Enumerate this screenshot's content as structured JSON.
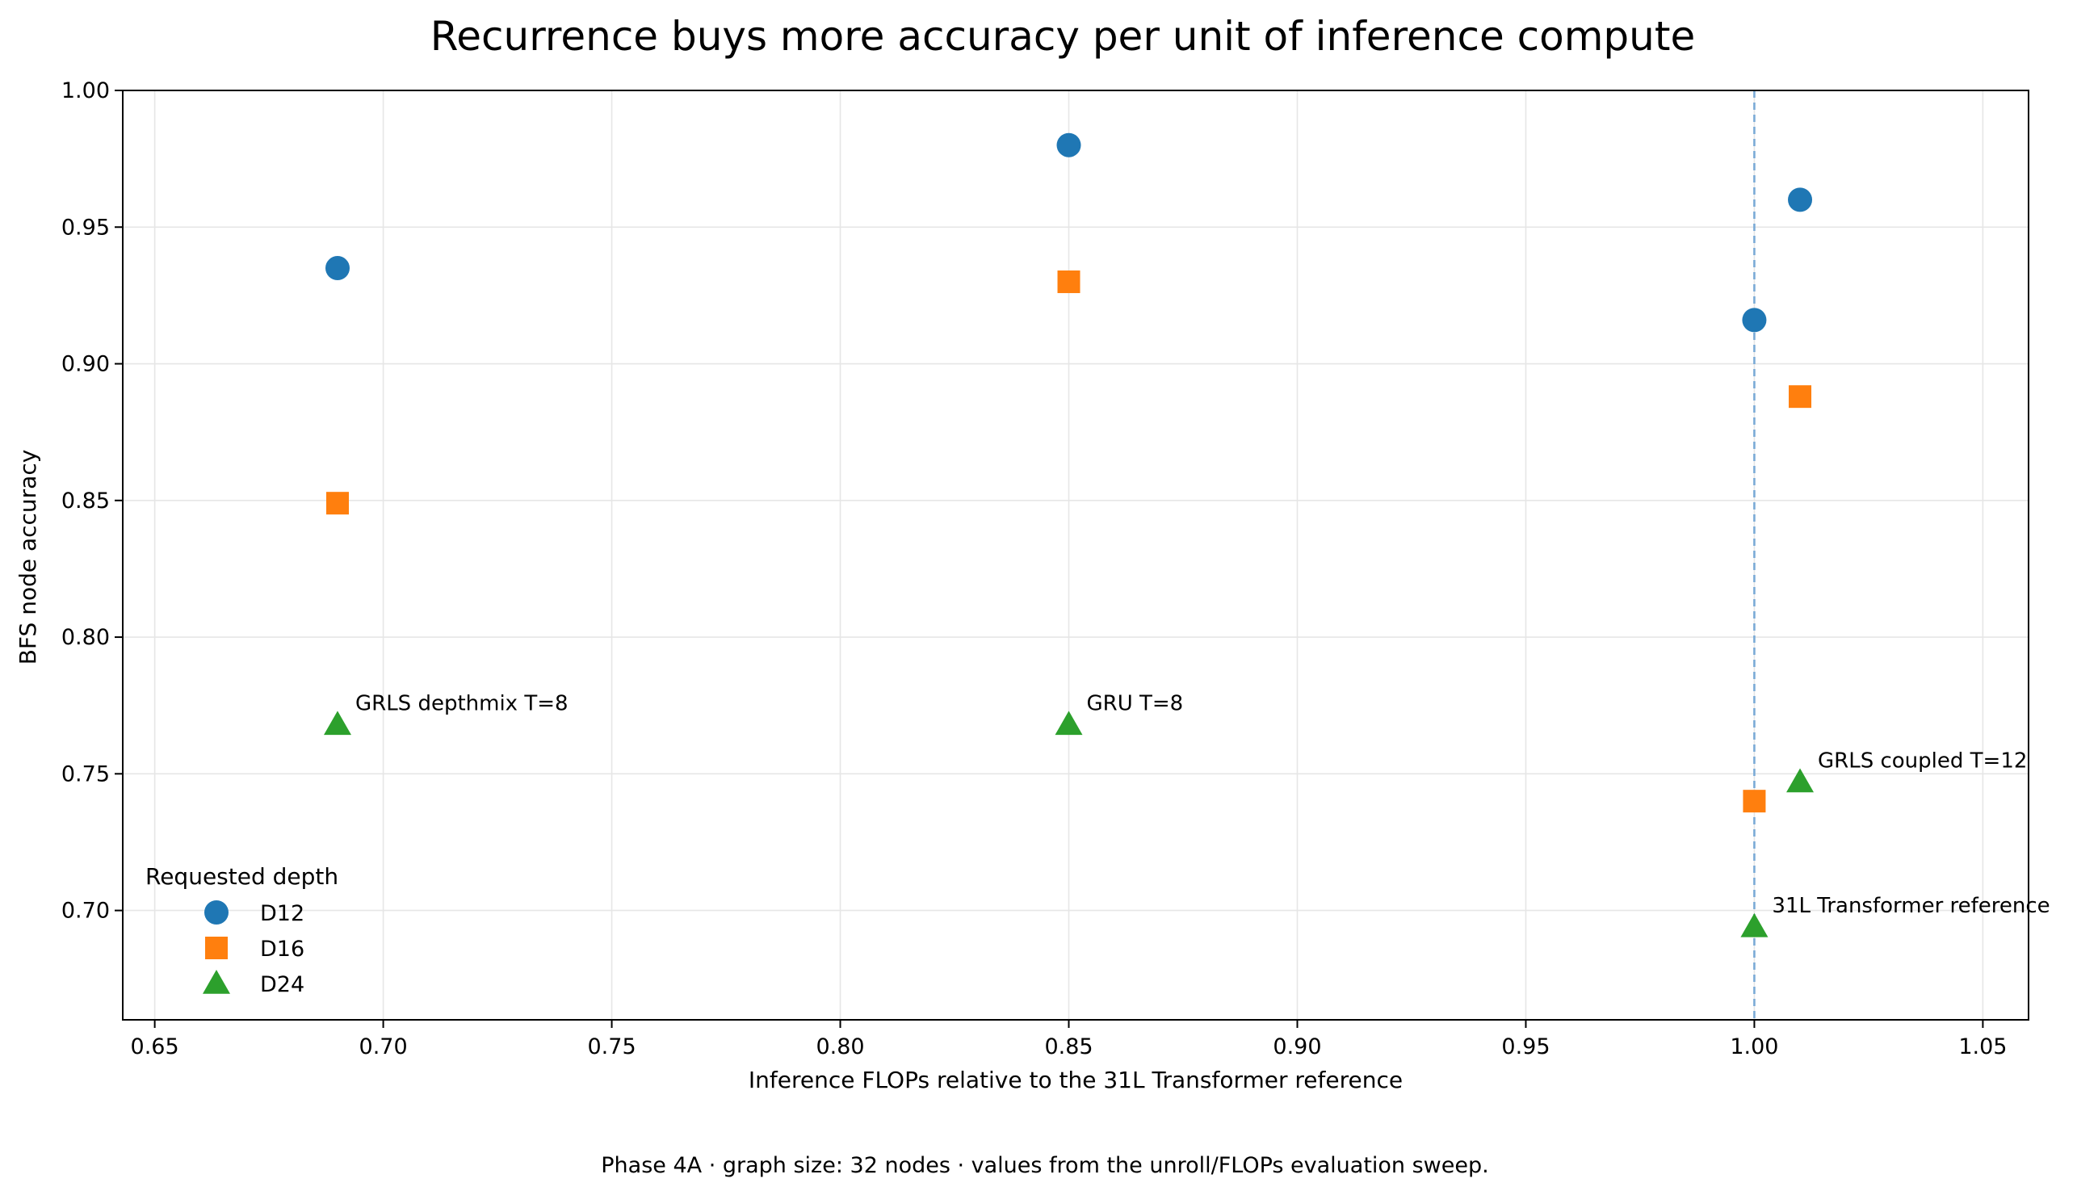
{
  "chart_data": {
    "type": "scatter",
    "title": "Recurrence buys more accuracy per unit of inference compute",
    "xlabel": "Inference FLOPs relative to the 31L Transformer reference",
    "ylabel": "BFS node accuracy",
    "xlim": [
      0.643,
      1.06
    ],
    "ylim": [
      0.66,
      1.0
    ],
    "xticks": [
      "0.65",
      "0.70",
      "0.75",
      "0.80",
      "0.85",
      "0.90",
      "0.95",
      "1.00",
      "1.05"
    ],
    "yticks": [
      "0.70",
      "0.75",
      "0.80",
      "0.85",
      "0.90",
      "0.95",
      "1.00"
    ],
    "grid": true,
    "reference_line": {
      "x": 1.0,
      "style": "dashed",
      "color": "#7aaad6"
    },
    "legend": {
      "title": "Requested depth",
      "placement": "lower-left"
    },
    "series": [
      {
        "name": "D12",
        "marker": "circle",
        "color": "#1f77b4",
        "points": [
          {
            "x": 0.69,
            "y": 0.935
          },
          {
            "x": 0.85,
            "y": 0.98
          },
          {
            "x": 1.0,
            "y": 0.916
          },
          {
            "x": 1.01,
            "y": 0.96
          }
        ]
      },
      {
        "name": "D16",
        "marker": "square",
        "color": "#ff7f0e",
        "points": [
          {
            "x": 0.69,
            "y": 0.849
          },
          {
            "x": 0.85,
            "y": 0.93
          },
          {
            "x": 1.0,
            "y": 0.74
          },
          {
            "x": 1.01,
            "y": 0.888
          }
        ]
      },
      {
        "name": "D24",
        "marker": "triangle",
        "color": "#2ca02c",
        "points": [
          {
            "x": 0.69,
            "y": 0.768
          },
          {
            "x": 0.85,
            "y": 0.768
          },
          {
            "x": 1.0,
            "y": 0.694
          },
          {
            "x": 1.01,
            "y": 0.747
          }
        ]
      }
    ],
    "annotations": [
      {
        "text": "GRLS depthmix T=8",
        "x": 0.69,
        "y": 0.768
      },
      {
        "text": "GRU T=8",
        "x": 0.85,
        "y": 0.768
      },
      {
        "text": "GRLS coupled T=12",
        "x": 1.01,
        "y": 0.747
      },
      {
        "text": "31L Transformer reference",
        "x": 1.0,
        "y": 0.694
      }
    ],
    "caption": "Phase 4A · graph size: 32 nodes · values from the unroll/FLOPs evaluation sweep."
  }
}
